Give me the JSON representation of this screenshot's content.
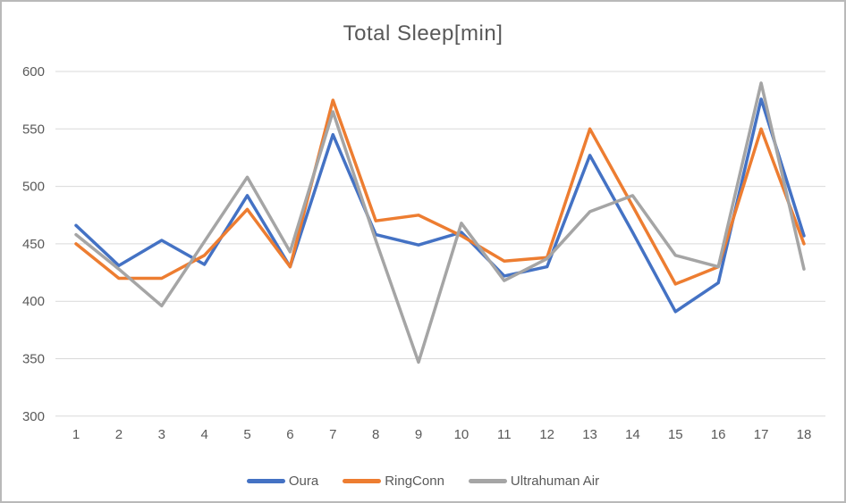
{
  "chart_data": {
    "type": "line",
    "title": "Total Sleep[min]",
    "categories": [
      "1",
      "2",
      "3",
      "4",
      "5",
      "6",
      "7",
      "8",
      "9",
      "10",
      "11",
      "12",
      "13",
      "14",
      "15",
      "16",
      "17",
      "18"
    ],
    "series": [
      {
        "name": "Oura",
        "color": "#4472C4",
        "values": [
          466,
          431,
          453,
          432,
          492,
          430,
          545,
          458,
          449,
          460,
          422,
          430,
          527,
          460,
          391,
          416,
          576,
          457
        ]
      },
      {
        "name": "RingConn",
        "color": "#ED7D31",
        "values": [
          450,
          420,
          420,
          440,
          480,
          430,
          575,
          470,
          475,
          457,
          435,
          438,
          550,
          483,
          415,
          430,
          550,
          450
        ]
      },
      {
        "name": "Ultrahuman Air",
        "color": "#A5A5A5",
        "values": [
          458,
          428,
          396,
          452,
          508,
          443,
          565,
          453,
          347,
          468,
          418,
          437,
          478,
          492,
          440,
          430,
          590,
          428
        ]
      }
    ],
    "y_axis": {
      "min": 300,
      "max": 600,
      "step": 50,
      "ticks": [
        600,
        550,
        500,
        450,
        400,
        350,
        300
      ]
    },
    "xlabel": "",
    "ylabel": "",
    "grid": true,
    "legend_position": "bottom",
    "colors": {
      "gridline": "#D9D9D9",
      "axis_text": "#595959",
      "title_text": "#595959"
    }
  }
}
